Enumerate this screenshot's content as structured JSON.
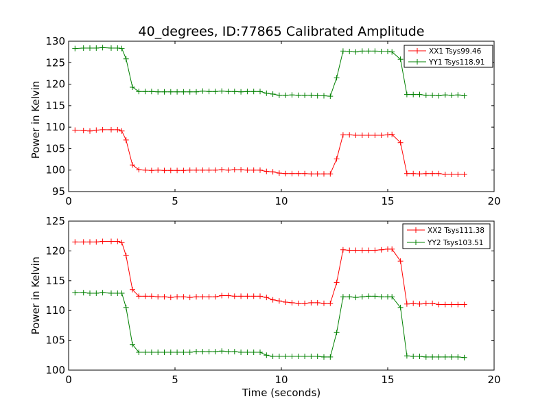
{
  "chart_data": [
    {
      "type": "line",
      "title": "40_degrees, ID:77865 Calibrated Amplitude",
      "xlabel": "",
      "ylabel": "Power in Kelvin",
      "xlim": [
        0,
        20
      ],
      "ylim": [
        95,
        130
      ],
      "xticks": [
        "0",
        "5",
        "10",
        "15",
        "20"
      ],
      "yticks": [
        "95",
        "100",
        "105",
        "110",
        "115",
        "120",
        "125",
        "130"
      ],
      "legend_position": "top-right",
      "grid": false,
      "x": [
        0.3,
        0.7,
        1.0,
        1.3,
        1.6,
        2.0,
        2.3,
        2.5,
        2.7,
        3.0,
        3.3,
        3.6,
        3.9,
        4.2,
        4.5,
        4.8,
        5.1,
        5.4,
        5.7,
        6.0,
        6.3,
        6.6,
        6.9,
        7.2,
        7.5,
        7.8,
        8.1,
        8.4,
        8.7,
        9.0,
        9.3,
        9.6,
        9.9,
        10.2,
        10.5,
        10.8,
        11.1,
        11.4,
        11.7,
        12.0,
        12.3,
        12.6,
        12.9,
        13.2,
        13.5,
        13.8,
        14.1,
        14.4,
        14.7,
        15.0,
        15.2,
        15.6,
        15.9,
        16.2,
        16.5,
        16.8,
        17.1,
        17.4,
        17.7,
        18.0,
        18.3,
        18.6
      ],
      "series": [
        {
          "name": "XX1 Tsys99.46",
          "color": "#ff0000",
          "values": [
            109.3,
            109.2,
            109.1,
            109.3,
            109.4,
            109.4,
            109.4,
            109.1,
            107.0,
            101.2,
            100.1,
            100.0,
            99.9,
            100.0,
            99.9,
            99.9,
            99.9,
            99.9,
            100.0,
            100.0,
            100.0,
            100.0,
            100.0,
            100.1,
            100.0,
            100.1,
            100.1,
            100.0,
            100.0,
            100.0,
            99.7,
            99.6,
            99.3,
            99.2,
            99.2,
            99.2,
            99.2,
            99.1,
            99.1,
            99.1,
            99.1,
            102.6,
            108.2,
            108.2,
            108.1,
            108.1,
            108.1,
            108.1,
            108.1,
            108.2,
            108.3,
            106.4,
            99.2,
            99.2,
            99.1,
            99.2,
            99.2,
            99.2,
            99.0,
            99.0,
            99.0,
            99.0
          ]
        },
        {
          "name": "YY1 Tsys118.91",
          "color": "#008000",
          "values": [
            128.3,
            128.4,
            128.4,
            128.4,
            128.5,
            128.4,
            128.4,
            128.3,
            125.9,
            119.3,
            118.3,
            118.3,
            118.3,
            118.2,
            118.2,
            118.2,
            118.2,
            118.2,
            118.2,
            118.2,
            118.4,
            118.3,
            118.3,
            118.4,
            118.3,
            118.3,
            118.2,
            118.3,
            118.3,
            118.3,
            117.9,
            117.7,
            117.4,
            117.4,
            117.5,
            117.4,
            117.4,
            117.4,
            117.3,
            117.3,
            117.2,
            121.5,
            127.7,
            127.6,
            127.5,
            127.7,
            127.7,
            127.7,
            127.6,
            127.6,
            127.5,
            125.8,
            117.6,
            117.6,
            117.6,
            117.4,
            117.4,
            117.3,
            117.5,
            117.4,
            117.5,
            117.3
          ]
        }
      ]
    },
    {
      "type": "line",
      "title": "",
      "xlabel": "Time (seconds)",
      "ylabel": "Power in Kelvin",
      "xlim": [
        0,
        20
      ],
      "ylim": [
        100,
        125
      ],
      "xticks": [
        "0",
        "5",
        "10",
        "15",
        "20"
      ],
      "yticks": [
        "100",
        "105",
        "110",
        "115",
        "120",
        "125"
      ],
      "legend_position": "top-right",
      "grid": false,
      "x": [
        0.3,
        0.7,
        1.0,
        1.3,
        1.6,
        2.0,
        2.3,
        2.5,
        2.7,
        3.0,
        3.3,
        3.6,
        3.9,
        4.2,
        4.5,
        4.8,
        5.1,
        5.4,
        5.7,
        6.0,
        6.3,
        6.6,
        6.9,
        7.2,
        7.5,
        7.8,
        8.1,
        8.4,
        8.7,
        9.0,
        9.3,
        9.6,
        9.9,
        10.2,
        10.5,
        10.8,
        11.1,
        11.4,
        11.7,
        12.0,
        12.3,
        12.6,
        12.9,
        13.2,
        13.5,
        13.8,
        14.1,
        14.4,
        14.7,
        15.0,
        15.2,
        15.6,
        15.9,
        16.2,
        16.5,
        16.8,
        17.1,
        17.4,
        17.7,
        18.0,
        18.3,
        18.6
      ],
      "series": [
        {
          "name": "XX2 Tsys111.38",
          "color": "#ff0000",
          "values": [
            121.5,
            121.5,
            121.5,
            121.5,
            121.6,
            121.6,
            121.6,
            121.4,
            119.2,
            113.5,
            112.4,
            112.4,
            112.4,
            112.3,
            112.3,
            112.2,
            112.3,
            112.3,
            112.2,
            112.3,
            112.3,
            112.3,
            112.3,
            112.5,
            112.5,
            112.4,
            112.4,
            112.4,
            112.4,
            112.4,
            112.2,
            111.8,
            111.6,
            111.4,
            111.3,
            111.2,
            111.2,
            111.3,
            111.3,
            111.2,
            111.2,
            114.7,
            120.2,
            120.1,
            120.1,
            120.1,
            120.1,
            120.1,
            120.2,
            120.3,
            120.3,
            118.3,
            111.1,
            111.2,
            111.1,
            111.2,
            111.2,
            111.0,
            111.0,
            111.0,
            111.0,
            111.0
          ]
        },
        {
          "name": "YY2 Tsys103.51",
          "color": "#008000",
          "values": [
            113.0,
            113.0,
            112.9,
            112.9,
            113.0,
            112.9,
            112.9,
            112.9,
            110.5,
            104.3,
            103.0,
            103.0,
            103.0,
            103.0,
            103.0,
            103.0,
            103.0,
            103.0,
            103.0,
            103.1,
            103.1,
            103.1,
            103.1,
            103.2,
            103.1,
            103.1,
            103.0,
            103.0,
            103.0,
            103.0,
            102.5,
            102.3,
            102.3,
            102.3,
            102.3,
            102.3,
            102.3,
            102.3,
            102.3,
            102.2,
            102.2,
            106.3,
            112.3,
            112.3,
            112.2,
            112.3,
            112.4,
            112.4,
            112.3,
            112.3,
            112.3,
            110.5,
            102.4,
            102.3,
            102.3,
            102.2,
            102.2,
            102.2,
            102.2,
            102.2,
            102.2,
            102.1
          ]
        }
      ]
    }
  ]
}
